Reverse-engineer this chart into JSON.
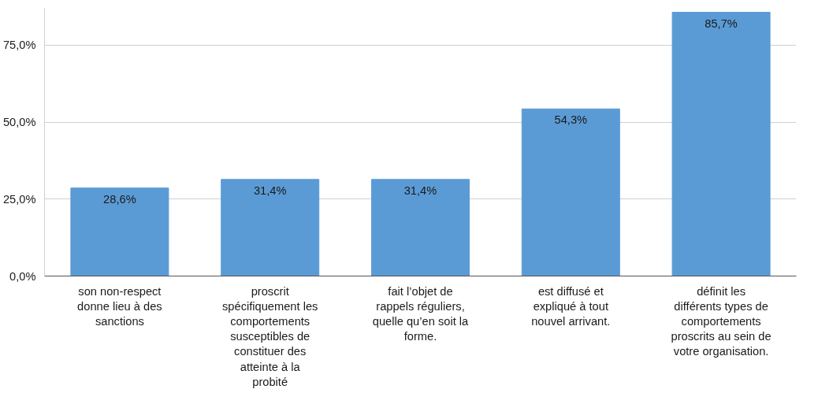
{
  "chart_data": {
    "type": "bar",
    "categories": [
      "son non-respect donne lieu à des sanctions",
      "proscrit spécifiquement les comportements susceptibles de constituer des atteinte à la probité",
      "fait l’objet de rappels réguliers, quelle qu’en soit la forme.",
      "est diffusé et expliqué à tout nouvel arrivant.",
      "définit les différents types de comportements proscrits au sein de votre organisation."
    ],
    "values": [
      28.6,
      31.4,
      31.4,
      54.3,
      85.7
    ],
    "value_labels": [
      "28,6%",
      "31,4%",
      "31,4%",
      "54,3%",
      "85,7%"
    ],
    "color": "#5b9bd5",
    "ylim": [
      0,
      87
    ],
    "yticks": [
      {
        "value": 0,
        "label": "0,0%"
      },
      {
        "value": 25,
        "label": "25,0%"
      },
      {
        "value": 50,
        "label": "50,0%"
      },
      {
        "value": 75,
        "label": "75,0%"
      }
    ],
    "grid": "y"
  }
}
